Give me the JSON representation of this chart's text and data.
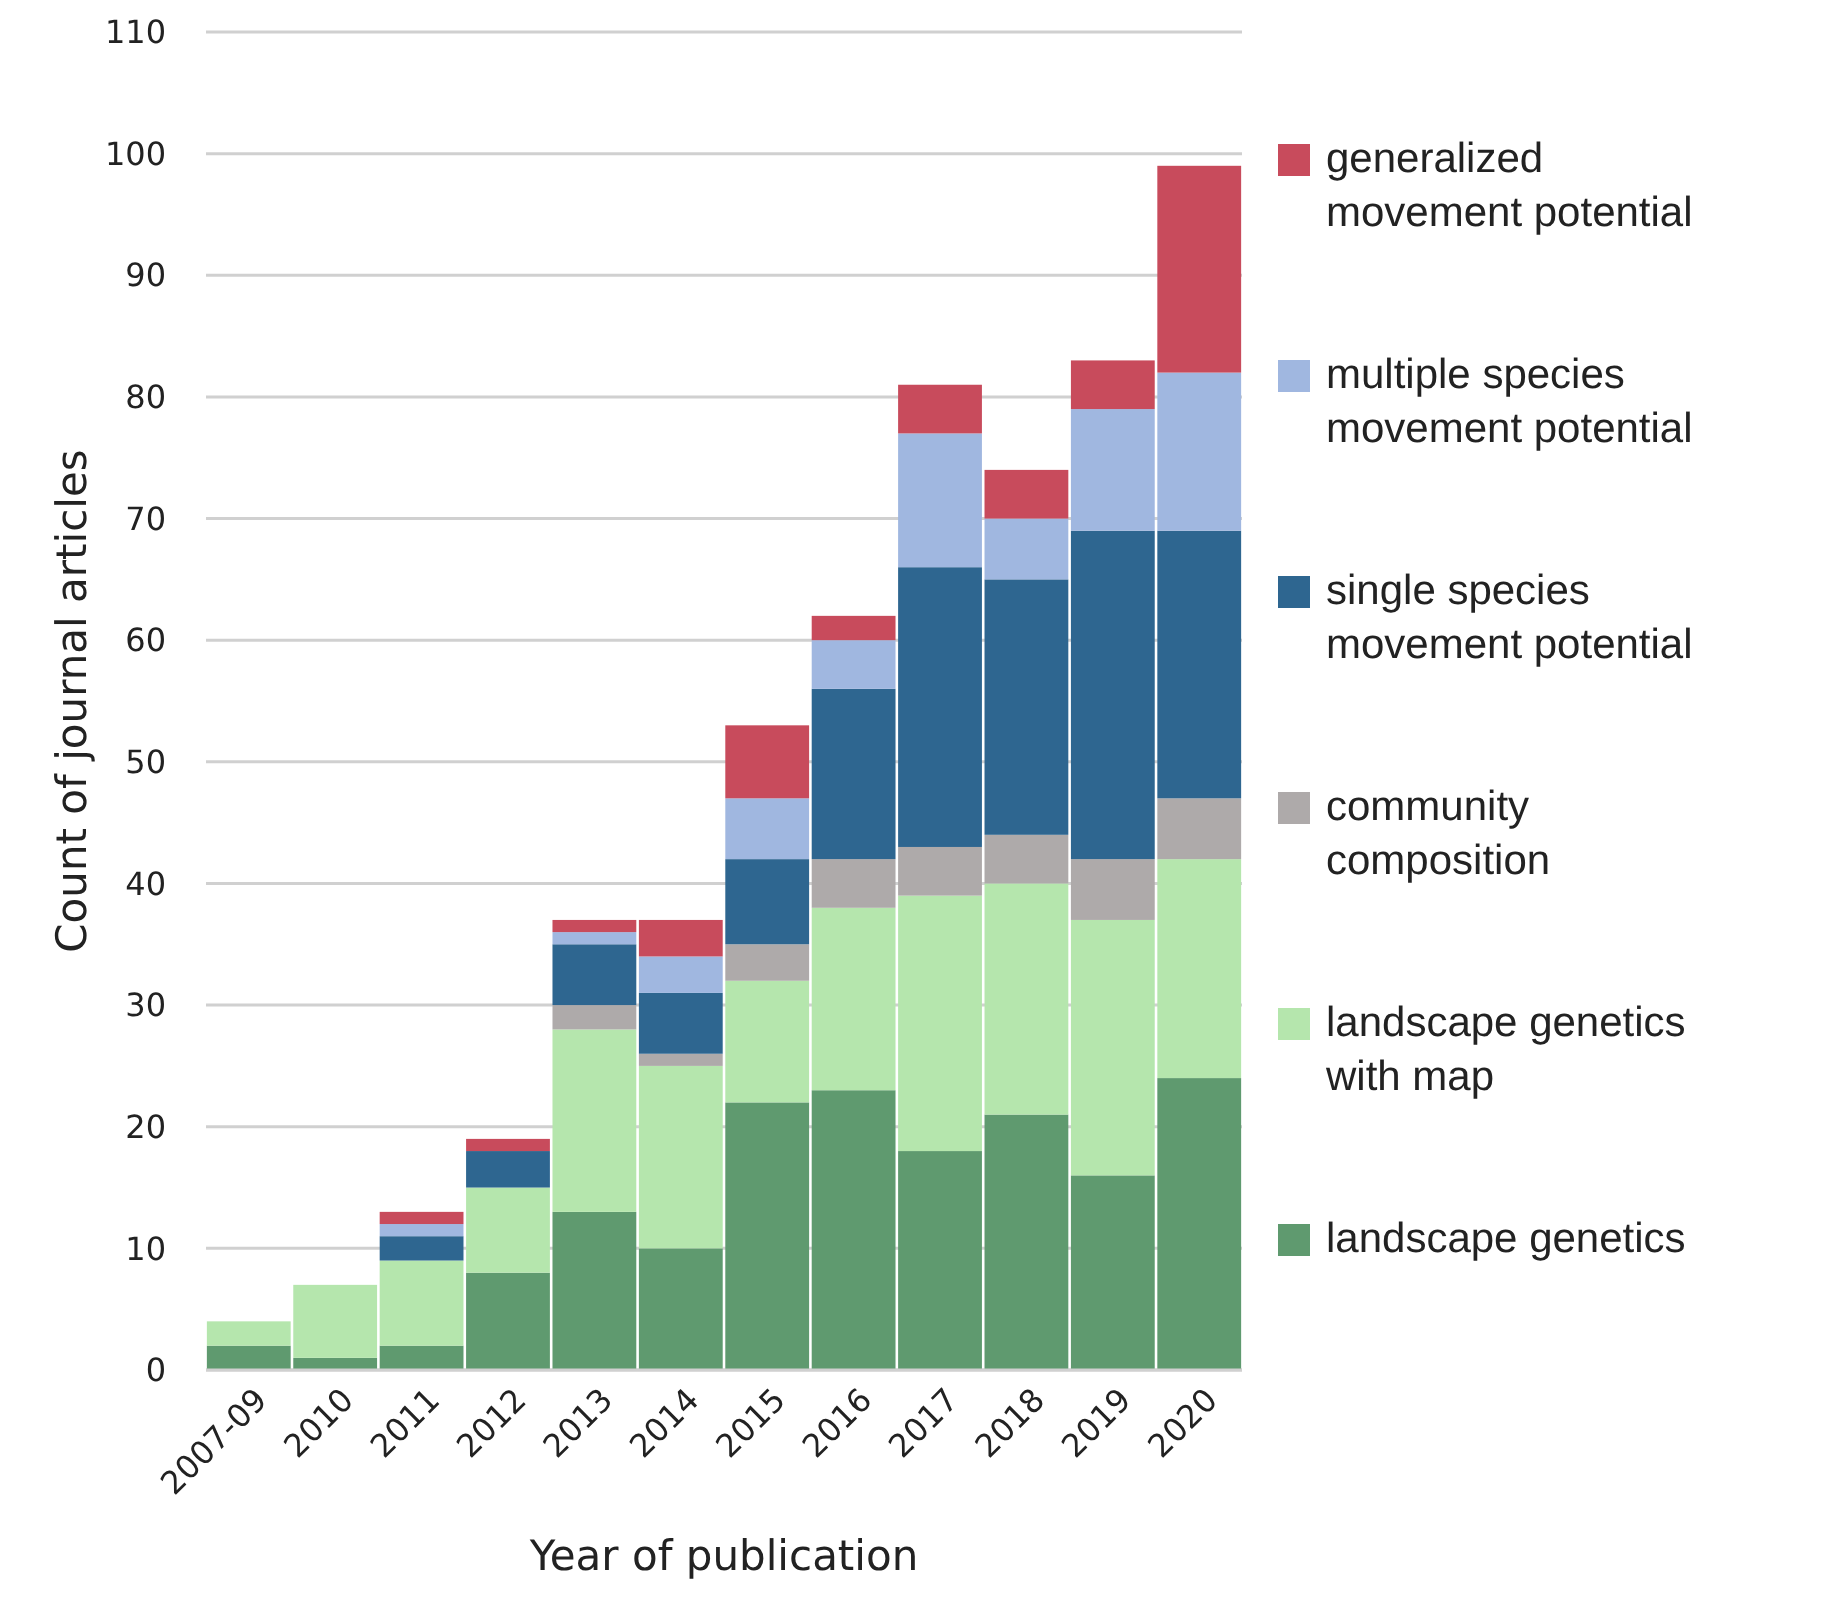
{
  "chart_data": {
    "type": "bar",
    "stacked": true,
    "xlabel": "Year of publication",
    "ylabel": "Count of journal articles",
    "categories": [
      "2007-09",
      "2010",
      "2011",
      "2012",
      "2013",
      "2014",
      "2015",
      "2016",
      "2017",
      "2018",
      "2019",
      "2020"
    ],
    "series": [
      {
        "name": "landscape genetics",
        "color": "#5f9a6f",
        "values": [
          2,
          1,
          2,
          8,
          13,
          10,
          22,
          23,
          18,
          21,
          16,
          24
        ]
      },
      {
        "name": "landscape genetics with map",
        "color": "#b5e6ad",
        "values": [
          2,
          6,
          7,
          7,
          15,
          15,
          10,
          15,
          21,
          19,
          21,
          18
        ]
      },
      {
        "name": "community composition",
        "color": "#aeaaaa",
        "values": [
          0,
          0,
          0,
          0,
          2,
          1,
          3,
          4,
          4,
          4,
          5,
          5
        ]
      },
      {
        "name": "single species movement potential",
        "color": "#2e6690",
        "values": [
          0,
          0,
          2,
          3,
          5,
          5,
          7,
          14,
          23,
          21,
          27,
          22
        ]
      },
      {
        "name": "multiple species movement potential",
        "color": "#a0b7e0",
        "values": [
          0,
          0,
          1,
          0,
          1,
          3,
          5,
          4,
          11,
          5,
          10,
          13
        ]
      },
      {
        "name": "generalized movement potential",
        "color": "#c84b5c",
        "values": [
          0,
          0,
          1,
          1,
          1,
          3,
          6,
          2,
          4,
          4,
          4,
          17
        ]
      }
    ],
    "ylim": [
      0,
      110
    ],
    "yticks": [
      0,
      10,
      20,
      30,
      40,
      50,
      60,
      70,
      80,
      90,
      100,
      110
    ],
    "grid": "y",
    "legend": "right"
  }
}
